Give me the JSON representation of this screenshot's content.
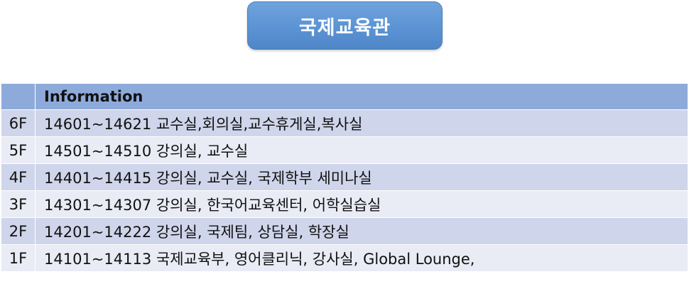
{
  "building": {
    "title": "국제교육관"
  },
  "table": {
    "header": {
      "floor": "",
      "info": "Information"
    },
    "rows": [
      {
        "floor": "6F",
        "info": "14601~14621 교수실,회의실,교수휴게실,복사실"
      },
      {
        "floor": "5F",
        "info": "14501~14510 강의실, 교수실"
      },
      {
        "floor": "4F",
        "info": "14401~14415 강의실, 교수실, 국제학부 세미나실"
      },
      {
        "floor": "3F",
        "info": "14301~14307 강의실, 한국어교육센터, 어학실습실"
      },
      {
        "floor": "2F",
        "info": "14201~14222 강의실, 국제팀, 상담실, 학장실"
      },
      {
        "floor": "1F",
        "info": "14101~14113 국제교육부, 영어클리닉, 강사실, Global Lounge,"
      }
    ]
  },
  "colors": {
    "title_fill": "#5b93d4",
    "header_fill": "#8eaadb",
    "row_odd_fill": "#cfd5ea",
    "row_even_fill": "#e9ebf5"
  }
}
